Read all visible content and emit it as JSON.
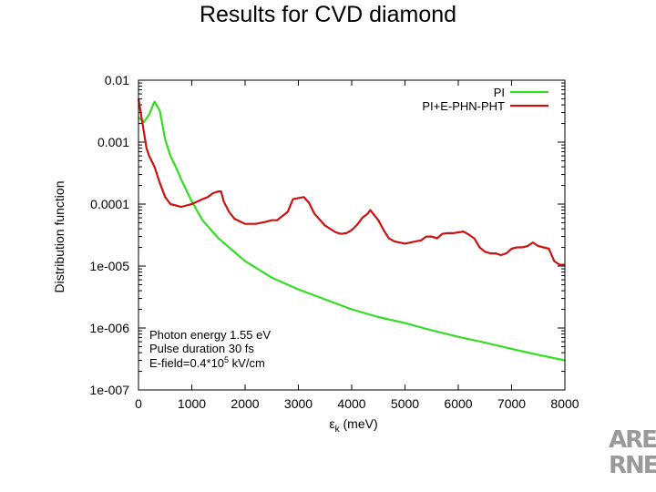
{
  "slide": {
    "title": "Results for CVD diamond"
  },
  "logo": {
    "line1": "ARE",
    "line2": "RNE"
  },
  "colors": {
    "pi": "#33dd22",
    "combined": "#cc1111",
    "frame": "#000000"
  },
  "chart_data": {
    "type": "line",
    "xlabel_symbol": "ε",
    "xlabel_sub": "k",
    "xlabel_rest": " (meV)",
    "ylabel": "Distribution function",
    "xlim": [
      0,
      8000
    ],
    "ylim": [
      1e-07,
      0.01
    ],
    "yscale": "log",
    "xticks": [
      0,
      1000,
      2000,
      3000,
      4000,
      5000,
      6000,
      7000,
      8000
    ],
    "xtick_labels": [
      "0",
      "1000",
      "2000",
      "3000",
      "4000",
      "5000",
      "6000",
      "7000",
      "8000"
    ],
    "yticks": [
      1e-07,
      1e-06,
      1e-05,
      0.0001,
      0.001,
      0.01
    ],
    "ytick_labels": [
      "1e-007",
      "1e-006",
      "1e-005",
      "0.0001",
      "0.001",
      "0.01"
    ],
    "legend": {
      "position": "top-right",
      "entries": [
        "PI",
        "PI+E-PHN-PHT"
      ]
    },
    "annotations": {
      "line1": "Photon energy 1.55 eV",
      "line2": "Pulse duration 30 fs",
      "line3_prefix": "E-field=0.4*10",
      "line3_sup": "5",
      "line3_suffix": " kV/cm"
    },
    "series": [
      {
        "name": "PI",
        "x": [
          0,
          100,
          200,
          300,
          400,
          500,
          600,
          700,
          800,
          1000,
          1200,
          1500,
          2000,
          2500,
          3000,
          3500,
          4000,
          4500,
          5000,
          5500,
          6000,
          6500,
          7000,
          7500,
          8000
        ],
        "y": [
          0.0025,
          0.0021,
          0.0028,
          0.0045,
          0.0032,
          0.0011,
          0.0006,
          0.0004,
          0.00025,
          0.00011,
          5.5e-05,
          2.8e-05,
          1.2e-05,
          6.5e-06,
          4.2e-06,
          2.9e-06,
          2e-06,
          1.5e-06,
          1.2e-06,
          9.2e-07,
          7.2e-07,
          5.8e-07,
          4.6e-07,
          3.7e-07,
          3e-07
        ]
      },
      {
        "name": "PI+E-PHN-PHT",
        "x": [
          0,
          100,
          150,
          200,
          300,
          400,
          500,
          600,
          700,
          800,
          900,
          1000,
          1100,
          1200,
          1300,
          1400,
          1500,
          1550,
          1600,
          1700,
          1800,
          2000,
          2200,
          2400,
          2500,
          2600,
          2800,
          2900,
          3000,
          3100,
          3200,
          3300,
          3500,
          3700,
          3800,
          3900,
          4000,
          4100,
          4200,
          4300,
          4350,
          4400,
          4500,
          4600,
          4700,
          4800,
          5000,
          5200,
          5300,
          5400,
          5500,
          5600,
          5700,
          5800,
          5900,
          6000,
          6100,
          6200,
          6300,
          6400,
          6500,
          6600,
          6700,
          6800,
          6900,
          7000,
          7100,
          7200,
          7300,
          7400,
          7500,
          7600,
          7700,
          7800,
          7900,
          8000
        ],
        "y": [
          0.005,
          0.0015,
          0.0008,
          0.0006,
          0.0004,
          0.00022,
          0.00013,
          0.0001,
          9.5e-05,
          9e-05,
          9.5e-05,
          0.0001,
          0.00011,
          0.00012,
          0.00013,
          0.00015,
          0.00016,
          0.00016,
          0.00011,
          7.5e-05,
          5.8e-05,
          4.8e-05,
          4.8e-05,
          5.2e-05,
          5.5e-05,
          5.5e-05,
          7.5e-05,
          0.00012,
          0.000125,
          0.00013,
          0.000105,
          7e-05,
          4.5e-05,
          3.5e-05,
          3.3e-05,
          3.4e-05,
          3.8e-05,
          4.6e-05,
          6e-05,
          7e-05,
          8e-05,
          7e-05,
          5.5e-05,
          3.8e-05,
          2.8e-05,
          2.5e-05,
          2.3e-05,
          2.5e-05,
          2.6e-05,
          3e-05,
          3e-05,
          2.8e-05,
          3.3e-05,
          3.4e-05,
          3.4e-05,
          3.5e-05,
          3.6e-05,
          3.2e-05,
          2.8e-05,
          2e-05,
          1.7e-05,
          1.6e-05,
          1.6e-05,
          1.5e-05,
          1.6e-05,
          1.9e-05,
          2e-05,
          2e-05,
          2.1e-05,
          2.4e-05,
          2.1e-05,
          2e-05,
          1.9e-05,
          1.2e-05,
          1.05e-05,
          1.05e-05
        ]
      }
    ]
  }
}
